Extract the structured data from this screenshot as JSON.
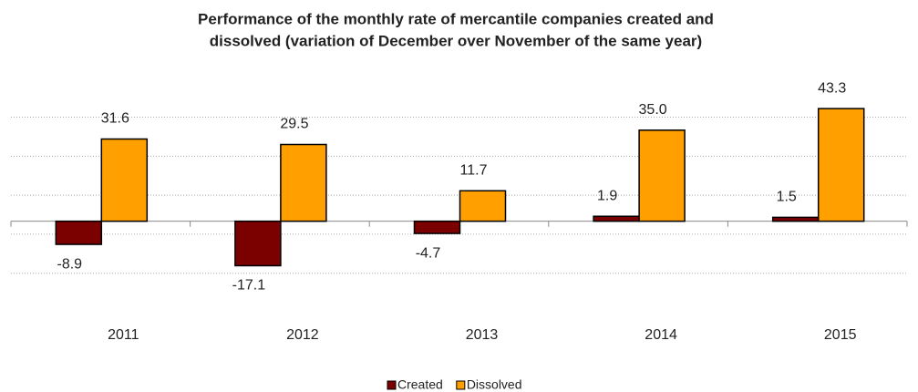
{
  "chart_data": {
    "type": "bar",
    "title": [
      "Performance of the monthly rate of mercantile companies created and",
      "dissolved (variation of December over November of the same year)"
    ],
    "categories": [
      "2011",
      "2012",
      "2013",
      "2014",
      "2015"
    ],
    "series": [
      {
        "name": "Created",
        "color": "#7b0000",
        "values": [
          -8.9,
          -17.1,
          -4.7,
          1.9,
          1.5
        ],
        "value_labels": [
          "-8.9",
          "-17.1",
          "-4.7",
          "1.9",
          "1.5"
        ]
      },
      {
        "name": "Dissolved",
        "color": "#ffa000",
        "values": [
          31.6,
          29.5,
          11.7,
          35.0,
          43.3
        ],
        "value_labels": [
          "31.6",
          "29.5",
          "11.7",
          "35.0",
          "43.3"
        ]
      }
    ],
    "ylim": [
      -25,
      50
    ],
    "yticks": [
      -20,
      -5,
      10,
      25,
      40
    ],
    "grid": true,
    "legend": "bottom"
  }
}
